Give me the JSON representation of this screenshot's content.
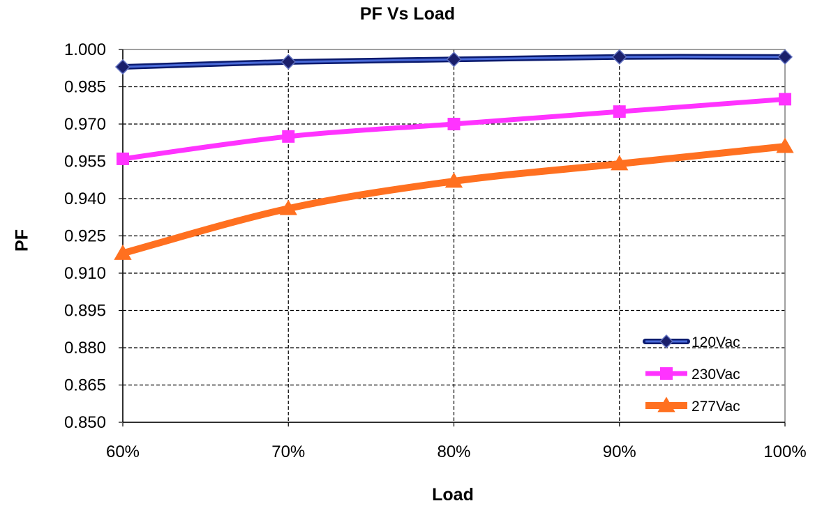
{
  "chart_data": {
    "type": "line",
    "title": "PF Vs Load",
    "xlabel": "Load",
    "ylabel": "PF",
    "categories": [
      "60%",
      "70%",
      "80%",
      "90%",
      "100%"
    ],
    "ylim": [
      0.85,
      1.0
    ],
    "yticks": [
      "0.850",
      "0.865",
      "0.880",
      "0.895",
      "0.910",
      "0.925",
      "0.940",
      "0.955",
      "0.970",
      "0.985",
      "1.000"
    ],
    "grid": true,
    "legend_position": "bottom-right",
    "series": [
      {
        "name": "120Vac",
        "values": [
          0.993,
          0.995,
          0.996,
          0.997,
          0.997
        ],
        "color": "#1f2f99",
        "marker": "diamond"
      },
      {
        "name": "230Vac",
        "values": [
          0.956,
          0.965,
          0.97,
          0.975,
          0.98
        ],
        "color": "#ff33ff",
        "marker": "square"
      },
      {
        "name": "277Vac",
        "values": [
          0.918,
          0.936,
          0.947,
          0.954,
          0.961
        ],
        "color": "#ff7020",
        "marker": "triangle"
      }
    ]
  }
}
